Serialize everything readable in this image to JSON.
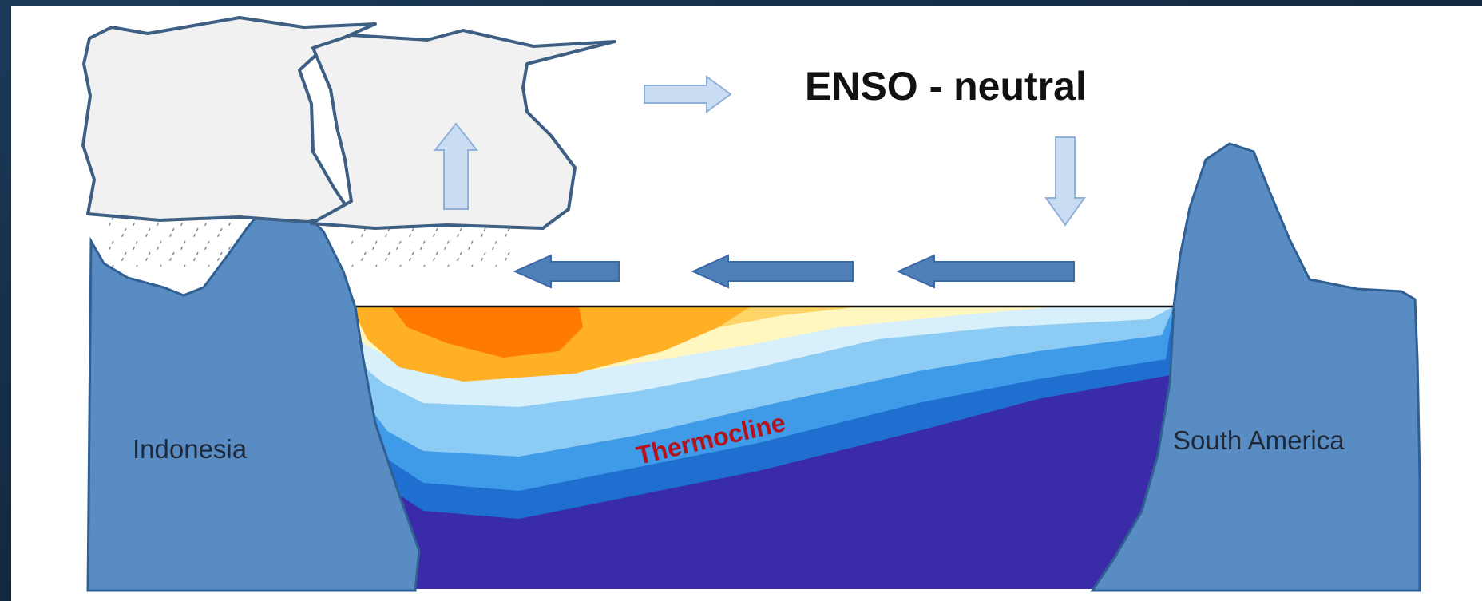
{
  "diagram": {
    "title": "ENSO - neutral",
    "labels": {
      "west_land": "Indonesia",
      "east_land": "South America",
      "thermocline": "Thermocline"
    }
  },
  "colors": {
    "frame_background": "#16304a",
    "panel": "#ffffff",
    "land": "#5a8cc4",
    "land_outline": "#2f5f93",
    "cloud_fill": "#f2f2f2",
    "cloud_outline": "#3d5f84",
    "wind_arrow": "#4f7fb8",
    "convection_arrow": "#c9dcf2",
    "warm_core": "#ff6a00",
    "warm": "#ffa51a",
    "mild": "#ffd466",
    "neutral_water": "#fff7c2",
    "cool_water": "#9fd4f4",
    "cold_water": "#2f8fe0",
    "deep_water": "#3a2ca8",
    "thermocline_label": "#b5121b",
    "title_text": "#111111"
  },
  "icons": [
    "cloud-icon",
    "rain-icon",
    "arrow-right-icon",
    "arrow-up-icon",
    "arrow-down-icon",
    "arrow-left-icon"
  ]
}
